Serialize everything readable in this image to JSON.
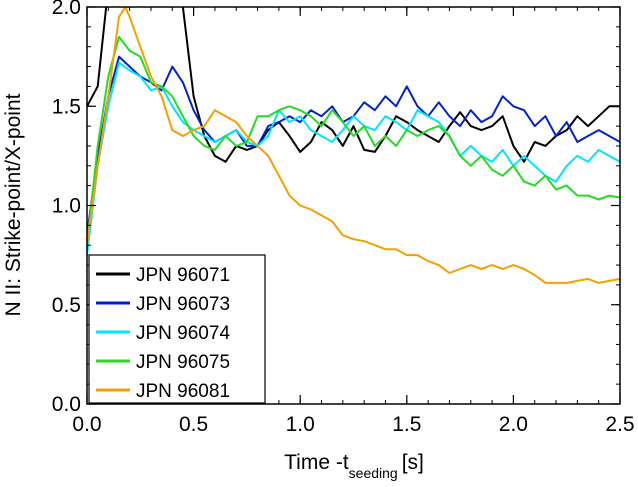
{
  "chart_data": {
    "type": "line",
    "title": "",
    "xlabel_main": "Time -t",
    "xlabel_sub": "seeding",
    "xlabel_unit": "[s]",
    "ylabel": "N II: Strike-point/X-point",
    "xlim": [
      0.0,
      2.5
    ],
    "ylim": [
      0.0,
      2.0
    ],
    "xticks": [
      0.0,
      0.5,
      1.0,
      1.5,
      2.0,
      2.5
    ],
    "yticks": [
      0.0,
      0.5,
      1.0,
      1.5,
      2.0
    ],
    "xtick_labels": [
      "0.0",
      "0.5",
      "1.0",
      "1.5",
      "2.0",
      "2.5"
    ],
    "ytick_labels": [
      "0.0",
      "0.5",
      "1.0",
      "1.5",
      "2.0"
    ],
    "legend_position": "bottom-left",
    "series": [
      {
        "name": "JPN 96071",
        "color": "#000000",
        "x": [
          0.0,
          0.05,
          0.1,
          0.13,
          0.18,
          0.2,
          0.25,
          0.3,
          0.35,
          0.4,
          0.45,
          0.5,
          0.55,
          0.6,
          0.65,
          0.7,
          0.75,
          0.8,
          0.85,
          0.9,
          0.95,
          1.0,
          1.05,
          1.1,
          1.15,
          1.2,
          1.25,
          1.3,
          1.35,
          1.4,
          1.45,
          1.5,
          1.55,
          1.6,
          1.65,
          1.7,
          1.75,
          1.8,
          1.85,
          1.9,
          1.95,
          2.0,
          2.05,
          2.1,
          2.15,
          2.2,
          2.25,
          2.3,
          2.35,
          2.4,
          2.45,
          2.5
        ],
        "y": [
          1.5,
          1.6,
          2.1,
          2.15,
          2.0,
          2.1,
          2.05,
          2.1,
          2.15,
          2.1,
          2.0,
          1.55,
          1.35,
          1.25,
          1.22,
          1.3,
          1.28,
          1.3,
          1.38,
          1.42,
          1.35,
          1.27,
          1.32,
          1.42,
          1.38,
          1.3,
          1.4,
          1.28,
          1.27,
          1.35,
          1.45,
          1.42,
          1.38,
          1.35,
          1.32,
          1.4,
          1.47,
          1.4,
          1.38,
          1.4,
          1.45,
          1.3,
          1.22,
          1.32,
          1.3,
          1.35,
          1.38,
          1.45,
          1.4,
          1.45,
          1.5,
          1.5
        ]
      },
      {
        "name": "JPN 96073",
        "color": "#0022cc",
        "x": [
          0.0,
          0.05,
          0.1,
          0.15,
          0.2,
          0.25,
          0.3,
          0.35,
          0.4,
          0.45,
          0.5,
          0.55,
          0.6,
          0.65,
          0.7,
          0.75,
          0.8,
          0.85,
          0.9,
          0.95,
          1.0,
          1.05,
          1.1,
          1.15,
          1.2,
          1.25,
          1.3,
          1.35,
          1.4,
          1.45,
          1.5,
          1.55,
          1.6,
          1.65,
          1.7,
          1.75,
          1.8,
          1.85,
          1.9,
          1.95,
          2.0,
          2.05,
          2.1,
          2.15,
          2.2,
          2.25,
          2.3,
          2.35,
          2.4,
          2.45,
          2.5
        ],
        "y": [
          0.85,
          1.25,
          1.55,
          1.75,
          1.7,
          1.65,
          1.62,
          1.58,
          1.7,
          1.62,
          1.48,
          1.38,
          1.32,
          1.35,
          1.38,
          1.3,
          1.3,
          1.4,
          1.42,
          1.45,
          1.42,
          1.48,
          1.45,
          1.5,
          1.42,
          1.45,
          1.52,
          1.48,
          1.55,
          1.5,
          1.6,
          1.5,
          1.45,
          1.52,
          1.45,
          1.4,
          1.48,
          1.42,
          1.45,
          1.55,
          1.5,
          1.48,
          1.4,
          1.45,
          1.35,
          1.42,
          1.32,
          1.35,
          1.38,
          1.35,
          1.32
        ]
      },
      {
        "name": "JPN 96074",
        "color": "#00e5ff",
        "x": [
          0.0,
          0.05,
          0.1,
          0.15,
          0.2,
          0.25,
          0.3,
          0.35,
          0.4,
          0.45,
          0.5,
          0.55,
          0.6,
          0.65,
          0.7,
          0.75,
          0.8,
          0.85,
          0.9,
          0.95,
          1.0,
          1.05,
          1.1,
          1.15,
          1.2,
          1.25,
          1.3,
          1.35,
          1.4,
          1.45,
          1.5,
          1.55,
          1.6,
          1.65,
          1.7,
          1.75,
          1.8,
          1.85,
          1.9,
          1.95,
          2.0,
          2.05,
          2.1,
          2.15,
          2.2,
          2.25,
          2.3,
          2.35,
          2.4,
          2.45,
          2.5
        ],
        "y": [
          0.75,
          1.2,
          1.5,
          1.72,
          1.68,
          1.65,
          1.58,
          1.6,
          1.5,
          1.42,
          1.38,
          1.35,
          1.32,
          1.35,
          1.38,
          1.32,
          1.3,
          1.35,
          1.48,
          1.42,
          1.45,
          1.38,
          1.35,
          1.32,
          1.38,
          1.45,
          1.4,
          1.38,
          1.45,
          1.42,
          1.38,
          1.48,
          1.45,
          1.42,
          1.35,
          1.25,
          1.3,
          1.25,
          1.22,
          1.28,
          1.2,
          1.25,
          1.2,
          1.15,
          1.12,
          1.2,
          1.25,
          1.22,
          1.28,
          1.25,
          1.22
        ]
      },
      {
        "name": "JPN 96075",
        "color": "#22dd22",
        "x": [
          0.0,
          0.05,
          0.1,
          0.15,
          0.2,
          0.25,
          0.3,
          0.35,
          0.4,
          0.45,
          0.5,
          0.55,
          0.6,
          0.65,
          0.7,
          0.75,
          0.8,
          0.85,
          0.9,
          0.95,
          1.0,
          1.05,
          1.1,
          1.15,
          1.2,
          1.25,
          1.3,
          1.35,
          1.4,
          1.45,
          1.5,
          1.55,
          1.6,
          1.65,
          1.7,
          1.75,
          1.8,
          1.85,
          1.9,
          1.95,
          2.0,
          2.05,
          2.1,
          2.15,
          2.2,
          2.25,
          2.3,
          2.35,
          2.4,
          2.45,
          2.5
        ],
        "y": [
          0.8,
          1.3,
          1.65,
          1.85,
          1.78,
          1.75,
          1.62,
          1.6,
          1.55,
          1.45,
          1.35,
          1.3,
          1.28,
          1.35,
          1.3,
          1.32,
          1.45,
          1.45,
          1.48,
          1.5,
          1.48,
          1.45,
          1.4,
          1.48,
          1.42,
          1.35,
          1.4,
          1.3,
          1.35,
          1.3,
          1.38,
          1.35,
          1.38,
          1.4,
          1.35,
          1.25,
          1.2,
          1.25,
          1.18,
          1.15,
          1.2,
          1.12,
          1.1,
          1.15,
          1.08,
          1.1,
          1.05,
          1.05,
          1.03,
          1.05,
          1.04
        ]
      },
      {
        "name": "JPN 96081",
        "color": "#f5a000",
        "x": [
          0.0,
          0.05,
          0.1,
          0.15,
          0.18,
          0.2,
          0.25,
          0.3,
          0.35,
          0.4,
          0.45,
          0.5,
          0.55,
          0.6,
          0.65,
          0.7,
          0.75,
          0.8,
          0.85,
          0.9,
          0.95,
          1.0,
          1.05,
          1.1,
          1.15,
          1.2,
          1.25,
          1.3,
          1.35,
          1.4,
          1.45,
          1.5,
          1.55,
          1.6,
          1.65,
          1.7,
          1.75,
          1.8,
          1.85,
          1.9,
          1.95,
          2.0,
          2.05,
          2.1,
          2.15,
          2.2,
          2.25,
          2.3,
          2.35,
          2.4,
          2.45,
          2.5
        ],
        "y": [
          0.8,
          1.2,
          1.55,
          1.95,
          2.0,
          1.95,
          1.8,
          1.65,
          1.55,
          1.38,
          1.35,
          1.38,
          1.4,
          1.48,
          1.45,
          1.42,
          1.35,
          1.3,
          1.25,
          1.15,
          1.05,
          1.0,
          0.98,
          0.95,
          0.92,
          0.85,
          0.83,
          0.82,
          0.8,
          0.78,
          0.78,
          0.75,
          0.75,
          0.72,
          0.7,
          0.66,
          0.68,
          0.7,
          0.68,
          0.7,
          0.68,
          0.7,
          0.68,
          0.65,
          0.61,
          0.61,
          0.61,
          0.62,
          0.63,
          0.61,
          0.62,
          0.63
        ]
      }
    ]
  }
}
